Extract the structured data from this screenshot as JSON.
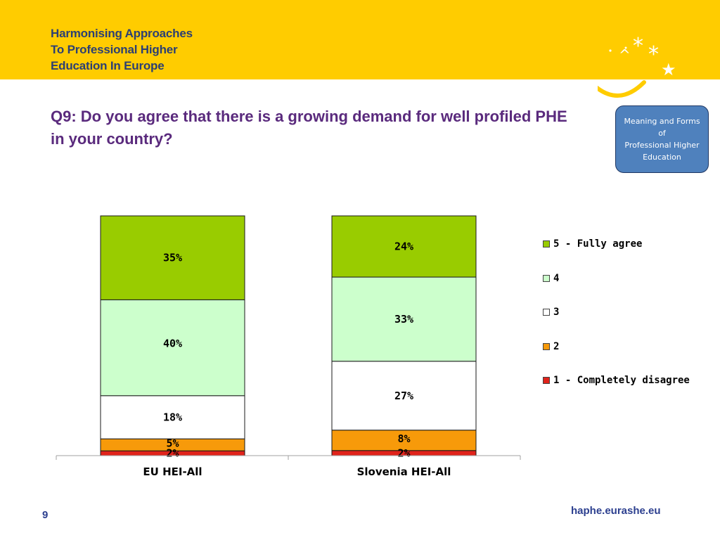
{
  "header": {
    "project_lines": [
      "Harmonising Approaches",
      "To Professional Higher",
      "Education In Europe"
    ]
  },
  "slide": {
    "question": "Q9: Do you agree that there is a growing demand for well profiled PHE in your country?",
    "badge_lines": [
      "Meaning and Forms",
      "of",
      "Professional Higher",
      "Education"
    ],
    "page_number": "9",
    "site_url": "haphe.eurashe.eu"
  },
  "colors": {
    "header_band": "#ffcc00",
    "title_text": "#5a2a7d",
    "badge_fill": "#4f81bd"
  },
  "chart_data": {
    "type": "bar",
    "stacked": true,
    "percent_scale": true,
    "categories": [
      "EU HEI-All",
      "Slovenia HEI-All"
    ],
    "ylim": [
      0,
      100
    ],
    "grid": false,
    "legend_position": "right",
    "series": [
      {
        "name": "1 - Completely disagree",
        "values": [
          2,
          2
        ],
        "labels": [
          "2%",
          "2%"
        ],
        "color": "#e0231b"
      },
      {
        "name": "2",
        "values": [
          5,
          8
        ],
        "labels": [
          "5%",
          "8%"
        ],
        "color": "#f79a0a"
      },
      {
        "name": "3",
        "values": [
          18,
          27
        ],
        "labels": [
          "18%",
          "27%"
        ],
        "color": "#ffffff"
      },
      {
        "name": "4",
        "values": [
          40,
          33
        ],
        "labels": [
          "40%",
          "33%"
        ],
        "color": "#ccffcc"
      },
      {
        "name": "5 - Fully agree",
        "values": [
          35,
          24
        ],
        "labels": [
          "35%",
          "24%"
        ],
        "color": "#99cc00"
      }
    ],
    "legend_order": [
      "5 - Fully agree",
      "4",
      "3",
      "2",
      "1 - Completely disagree"
    ]
  }
}
